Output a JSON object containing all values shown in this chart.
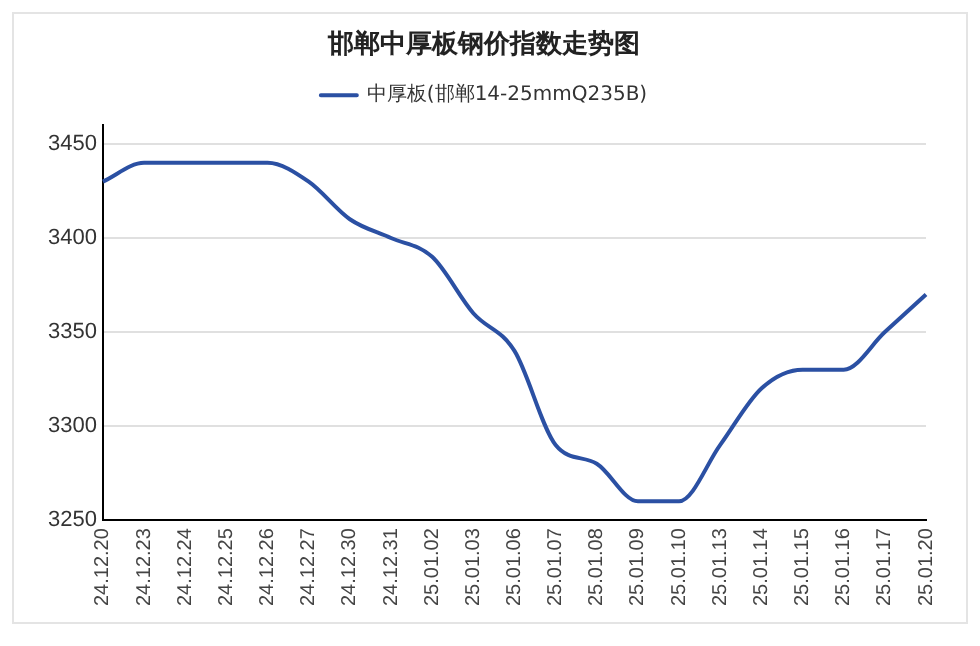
{
  "chart_data": {
    "type": "line",
    "title": "邯郸中厚板钢价指数走势图",
    "categories": [
      "24.12.20",
      "24.12.23",
      "24.12.24",
      "24.12.25",
      "24.12.26",
      "24.12.27",
      "24.12.30",
      "24.12.31",
      "25.01.02",
      "25.01.03",
      "25.01.06",
      "25.01.07",
      "25.01.08",
      "25.01.09",
      "25.01.10",
      "25.01.13",
      "25.01.14",
      "25.01.15",
      "25.01.16",
      "25.01.17",
      "25.01.20"
    ],
    "series": [
      {
        "name": "中厚板(邯郸14-25mmQ235B)",
        "color": "#2b50a3",
        "values": [
          3430,
          3440,
          3440,
          3440,
          3440,
          3430,
          3410,
          3400,
          3390,
          3360,
          3340,
          3290,
          3280,
          3260,
          3260,
          3290,
          3320,
          3330,
          3330,
          3350,
          3370
        ]
      }
    ],
    "ylim": [
      3250,
      3460
    ],
    "yticks": [
      3250,
      3300,
      3350,
      3400,
      3450
    ],
    "grid": "y",
    "legend": "top",
    "marker": "none",
    "line_style": "solid"
  }
}
